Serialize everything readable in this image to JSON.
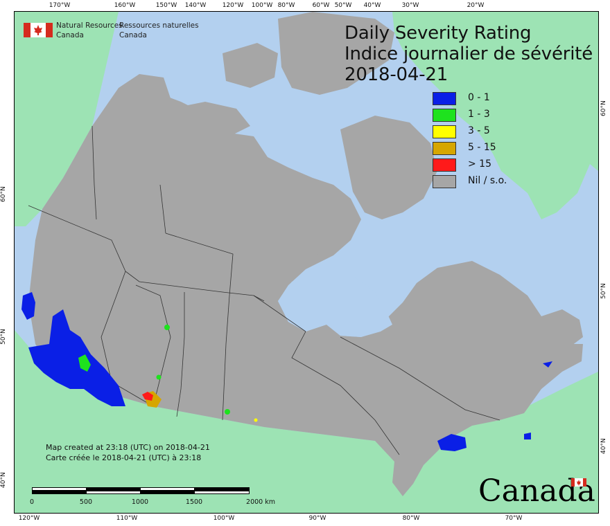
{
  "agency": {
    "name_en_line1": "Natural Resources",
    "name_en_line2": "Canada",
    "name_fr_line1": "Ressources naturelles",
    "name_fr_line2": "Canada",
    "flag": "canada-flag-icon"
  },
  "title": {
    "line1": "Daily Severity Rating",
    "line2": "Indice journalier de sévérité",
    "date": "2018-04-21"
  },
  "legend": [
    {
      "label": "0 - 1",
      "color": "#0a1fe6"
    },
    {
      "label": "1 - 3",
      "color": "#1ee21e"
    },
    {
      "label": "3 - 5",
      "color": "#ffff00"
    },
    {
      "label": "5 - 15",
      "color": "#d6a600"
    },
    {
      "label": "> 15",
      "color": "#ff1a1a"
    },
    {
      "label": "Nil / s.o.",
      "color": "#a6a6a6"
    }
  ],
  "graticule": {
    "top": [
      "170°W",
      "160°W",
      "150°W",
      "140°W",
      "120°W",
      "100°W",
      "80°W",
      "60°W",
      "50°W",
      "40°W",
      "30°W",
      "20°W"
    ],
    "bottom": [
      "120°W",
      "110°W",
      "100°W",
      "90°W",
      "80°W",
      "70°W"
    ],
    "left": [
      "60°N",
      "50°N",
      "40°N"
    ],
    "right": [
      "60°N",
      "50°N",
      "40°N"
    ]
  },
  "map_created": {
    "en": "Map created at 23:18 (UTC) on 2018-04-21",
    "fr": "Carte créée le 2018-04-21 (UTC) à 23:18"
  },
  "scale_bar": {
    "ticks": [
      "0",
      "500",
      "1000",
      "1500",
      "2000 km"
    ]
  },
  "wordmark": "Canada",
  "colors": {
    "ocean": "#b3d0ef",
    "foreign_land": "#9de3b4",
    "nil": "#a6a6a6",
    "boundary": "#333333"
  }
}
